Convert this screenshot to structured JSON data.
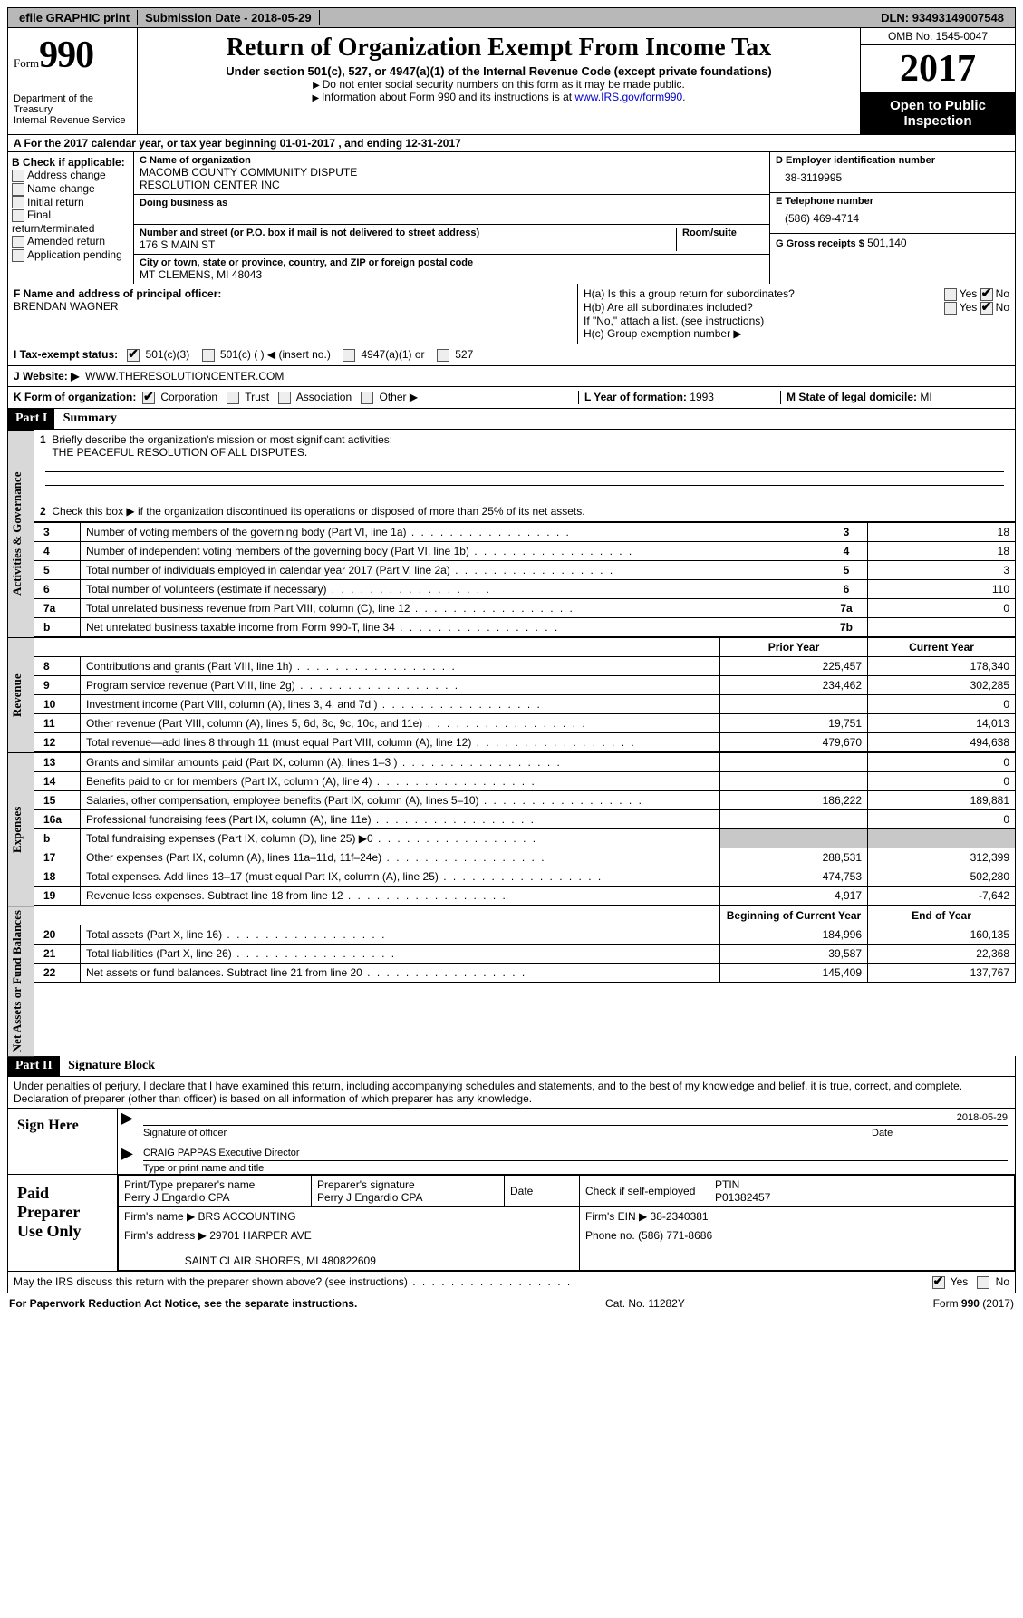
{
  "topbar": {
    "efile": "efile GRAPHIC print",
    "submission_label": "Submission Date -",
    "submission_date": "2018-05-29",
    "dln_label": "DLN:",
    "dln": "93493149007548"
  },
  "header": {
    "form_word": "Form",
    "form_number": "990",
    "dept1": "Department of the Treasury",
    "dept2": "Internal Revenue Service",
    "title": "Return of Organization Exempt From Income Tax",
    "subtitle": "Under section 501(c), 527, or 4947(a)(1) of the Internal Revenue Code (except private foundations)",
    "note1": "Do not enter social security numbers on this form as it may be made public.",
    "note2_prefix": "Information about Form 990 and its instructions is at ",
    "note2_link": "www.IRS.gov/form990",
    "omb": "OMB No. 1545-0047",
    "year": "2017",
    "open1": "Open to Public",
    "open2": "Inspection"
  },
  "rowA": {
    "text_prefix": "A  For the 2017 calendar year, or tax year beginning ",
    "begin": "01-01-2017",
    "mid": "  , and ending ",
    "end": "12-31-2017"
  },
  "B": {
    "heading": "B Check if applicable:",
    "opts": [
      "Address change",
      "Name change",
      "Initial return",
      "Final return/terminated",
      "Amended return",
      "Application pending"
    ]
  },
  "C": {
    "name_label": "C Name of organization",
    "name1": "MACOMB COUNTY COMMUNITY DISPUTE",
    "name2": "RESOLUTION CENTER INC",
    "dba_label": "Doing business as",
    "addr_label": "Number and street (or P.O. box if mail is not delivered to street address)",
    "room_label": "Room/suite",
    "addr": "176 S MAIN ST",
    "city_label": "City or town, state or province, country, and ZIP or foreign postal code",
    "city": "MT CLEMENS, MI  48043"
  },
  "D": {
    "label": "D Employer identification number",
    "value": "38-3119995"
  },
  "E": {
    "label": "E Telephone number",
    "value": "(586) 469-4714"
  },
  "G": {
    "label": "G Gross receipts $",
    "value": "501,140"
  },
  "F": {
    "label": "F  Name and address of principal officer:",
    "name": "BRENDAN WAGNER"
  },
  "H": {
    "a": "H(a)  Is this a group return for subordinates?",
    "b": "H(b)  Are all subordinates included?",
    "note": "If \"No,\" attach a list. (see instructions)",
    "c": "H(c)  Group exemption number ▶",
    "yes": "Yes",
    "no": "No"
  },
  "I": {
    "label": "I  Tax-exempt status:",
    "o1": "501(c)(3)",
    "o2": "501(c) (  ) ◀ (insert no.)",
    "o3": "4947(a)(1) or",
    "o4": "527"
  },
  "J": {
    "label": "J  Website: ▶",
    "value": "WWW.THERESOLUTIONCENTER.COM"
  },
  "K": {
    "label": "K Form of organization:",
    "o1": "Corporation",
    "o2": "Trust",
    "o3": "Association",
    "o4": "Other ▶"
  },
  "L": {
    "label": "L Year of formation:",
    "value": "1993"
  },
  "M": {
    "label": "M State of legal domicile:",
    "value": "MI"
  },
  "part1": {
    "hdr": "Part I",
    "title": "Summary",
    "q1": "Briefly describe the organization's mission or most significant activities:",
    "mission": "THE PEACEFUL RESOLUTION OF ALL DISPUTES.",
    "q2": "Check this box ▶        if the organization discontinued its operations or disposed of more than 25% of its net assets.",
    "rows_ag": [
      {
        "n": "3",
        "d": "Number of voting members of the governing body (Part VI, line 1a)",
        "k": "3",
        "v": "18"
      },
      {
        "n": "4",
        "d": "Number of independent voting members of the governing body (Part VI, line 1b)",
        "k": "4",
        "v": "18"
      },
      {
        "n": "5",
        "d": "Total number of individuals employed in calendar year 2017 (Part V, line 2a)",
        "k": "5",
        "v": "3"
      },
      {
        "n": "6",
        "d": "Total number of volunteers (estimate if necessary)",
        "k": "6",
        "v": "110"
      },
      {
        "n": "7a",
        "d": "Total unrelated business revenue from Part VIII, column (C), line 12",
        "k": "7a",
        "v": "0"
      },
      {
        "n": "b",
        "d": "Net unrelated business taxable income from Form 990-T, line 34",
        "k": "7b",
        "v": ""
      }
    ],
    "col_prior": "Prior Year",
    "col_current": "Current Year",
    "rows_rev": [
      {
        "n": "8",
        "d": "Contributions and grants (Part VIII, line 1h)",
        "p": "225,457",
        "c": "178,340"
      },
      {
        "n": "9",
        "d": "Program service revenue (Part VIII, line 2g)",
        "p": "234,462",
        "c": "302,285"
      },
      {
        "n": "10",
        "d": "Investment income (Part VIII, column (A), lines 3, 4, and 7d )",
        "p": "",
        "c": "0"
      },
      {
        "n": "11",
        "d": "Other revenue (Part VIII, column (A), lines 5, 6d, 8c, 9c, 10c, and 11e)",
        "p": "19,751",
        "c": "14,013"
      },
      {
        "n": "12",
        "d": "Total revenue—add lines 8 through 11 (must equal Part VIII, column (A), line 12)",
        "p": "479,670",
        "c": "494,638"
      }
    ],
    "rows_exp": [
      {
        "n": "13",
        "d": "Grants and similar amounts paid (Part IX, column (A), lines 1–3 )",
        "p": "",
        "c": "0"
      },
      {
        "n": "14",
        "d": "Benefits paid to or for members (Part IX, column (A), line 4)",
        "p": "",
        "c": "0"
      },
      {
        "n": "15",
        "d": "Salaries, other compensation, employee benefits (Part IX, column (A), lines 5–10)",
        "p": "186,222",
        "c": "189,881"
      },
      {
        "n": "16a",
        "d": "Professional fundraising fees (Part IX, column (A), line 11e)",
        "p": "",
        "c": "0"
      },
      {
        "n": "b",
        "d": "Total fundraising expenses (Part IX, column (D), line 25) ▶0",
        "p": "GRAY",
        "c": "GRAY"
      },
      {
        "n": "17",
        "d": "Other expenses (Part IX, column (A), lines 11a–11d, 11f–24e)",
        "p": "288,531",
        "c": "312,399"
      },
      {
        "n": "18",
        "d": "Total expenses. Add lines 13–17 (must equal Part IX, column (A), line 25)",
        "p": "474,753",
        "c": "502,280"
      },
      {
        "n": "19",
        "d": "Revenue less expenses. Subtract line 18 from line 12",
        "p": "4,917",
        "c": "-7,642"
      }
    ],
    "col_beg": "Beginning of Current Year",
    "col_end": "End of Year",
    "rows_net": [
      {
        "n": "20",
        "d": "Total assets (Part X, line 16)",
        "p": "184,996",
        "c": "160,135"
      },
      {
        "n": "21",
        "d": "Total liabilities (Part X, line 26)",
        "p": "39,587",
        "c": "22,368"
      },
      {
        "n": "22",
        "d": "Net assets or fund balances. Subtract line 21 from line 20",
        "p": "145,409",
        "c": "137,767"
      }
    ],
    "side_ag": "Activities & Governance",
    "side_rev": "Revenue",
    "side_exp": "Expenses",
    "side_net": "Net Assets or Fund Balances"
  },
  "part2": {
    "hdr": "Part II",
    "title": "Signature Block",
    "perjury": "Under penalties of perjury, I declare that I have examined this return, including accompanying schedules and statements, and to the best of my knowledge and belief, it is true, correct, and complete. Declaration of preparer (other than officer) is based on all information of which preparer has any knowledge.",
    "sign_here": "Sign Here",
    "sig_officer": "Signature of officer",
    "sig_date": "2018-05-29",
    "date_label": "Date",
    "officer_name": "CRAIG PAPPAS Executive Director",
    "type_name": "Type or print name and title",
    "paid": "Paid Preparer Use Only",
    "prep_name_label": "Print/Type preparer's name",
    "prep_name": "Perry J Engardio CPA",
    "prep_sig_label": "Preparer's signature",
    "prep_sig": "Perry J Engardio CPA",
    "prep_date_label": "Date",
    "check_if": "Check        if self-employed",
    "ptin_label": "PTIN",
    "ptin": "P01382457",
    "firm_name_label": "Firm's name    ▶",
    "firm_name": "BRS ACCOUNTING",
    "firm_ein_label": "Firm's EIN ▶",
    "firm_ein": "38-2340381",
    "firm_addr_label": "Firm's address ▶",
    "firm_addr1": "29701 HARPER AVE",
    "firm_addr2": "SAINT CLAIR SHORES, MI  480822609",
    "phone_label": "Phone no.",
    "phone": "(586) 771-8686",
    "discuss": "May the IRS discuss this return with the preparer shown above? (see instructions)",
    "yes": "Yes",
    "no": "No"
  },
  "footer": {
    "left": "For Paperwork Reduction Act Notice, see the separate instructions.",
    "mid": "Cat. No. 11282Y",
    "right_a": "Form ",
    "right_b": "990",
    "right_c": " (2017)"
  }
}
